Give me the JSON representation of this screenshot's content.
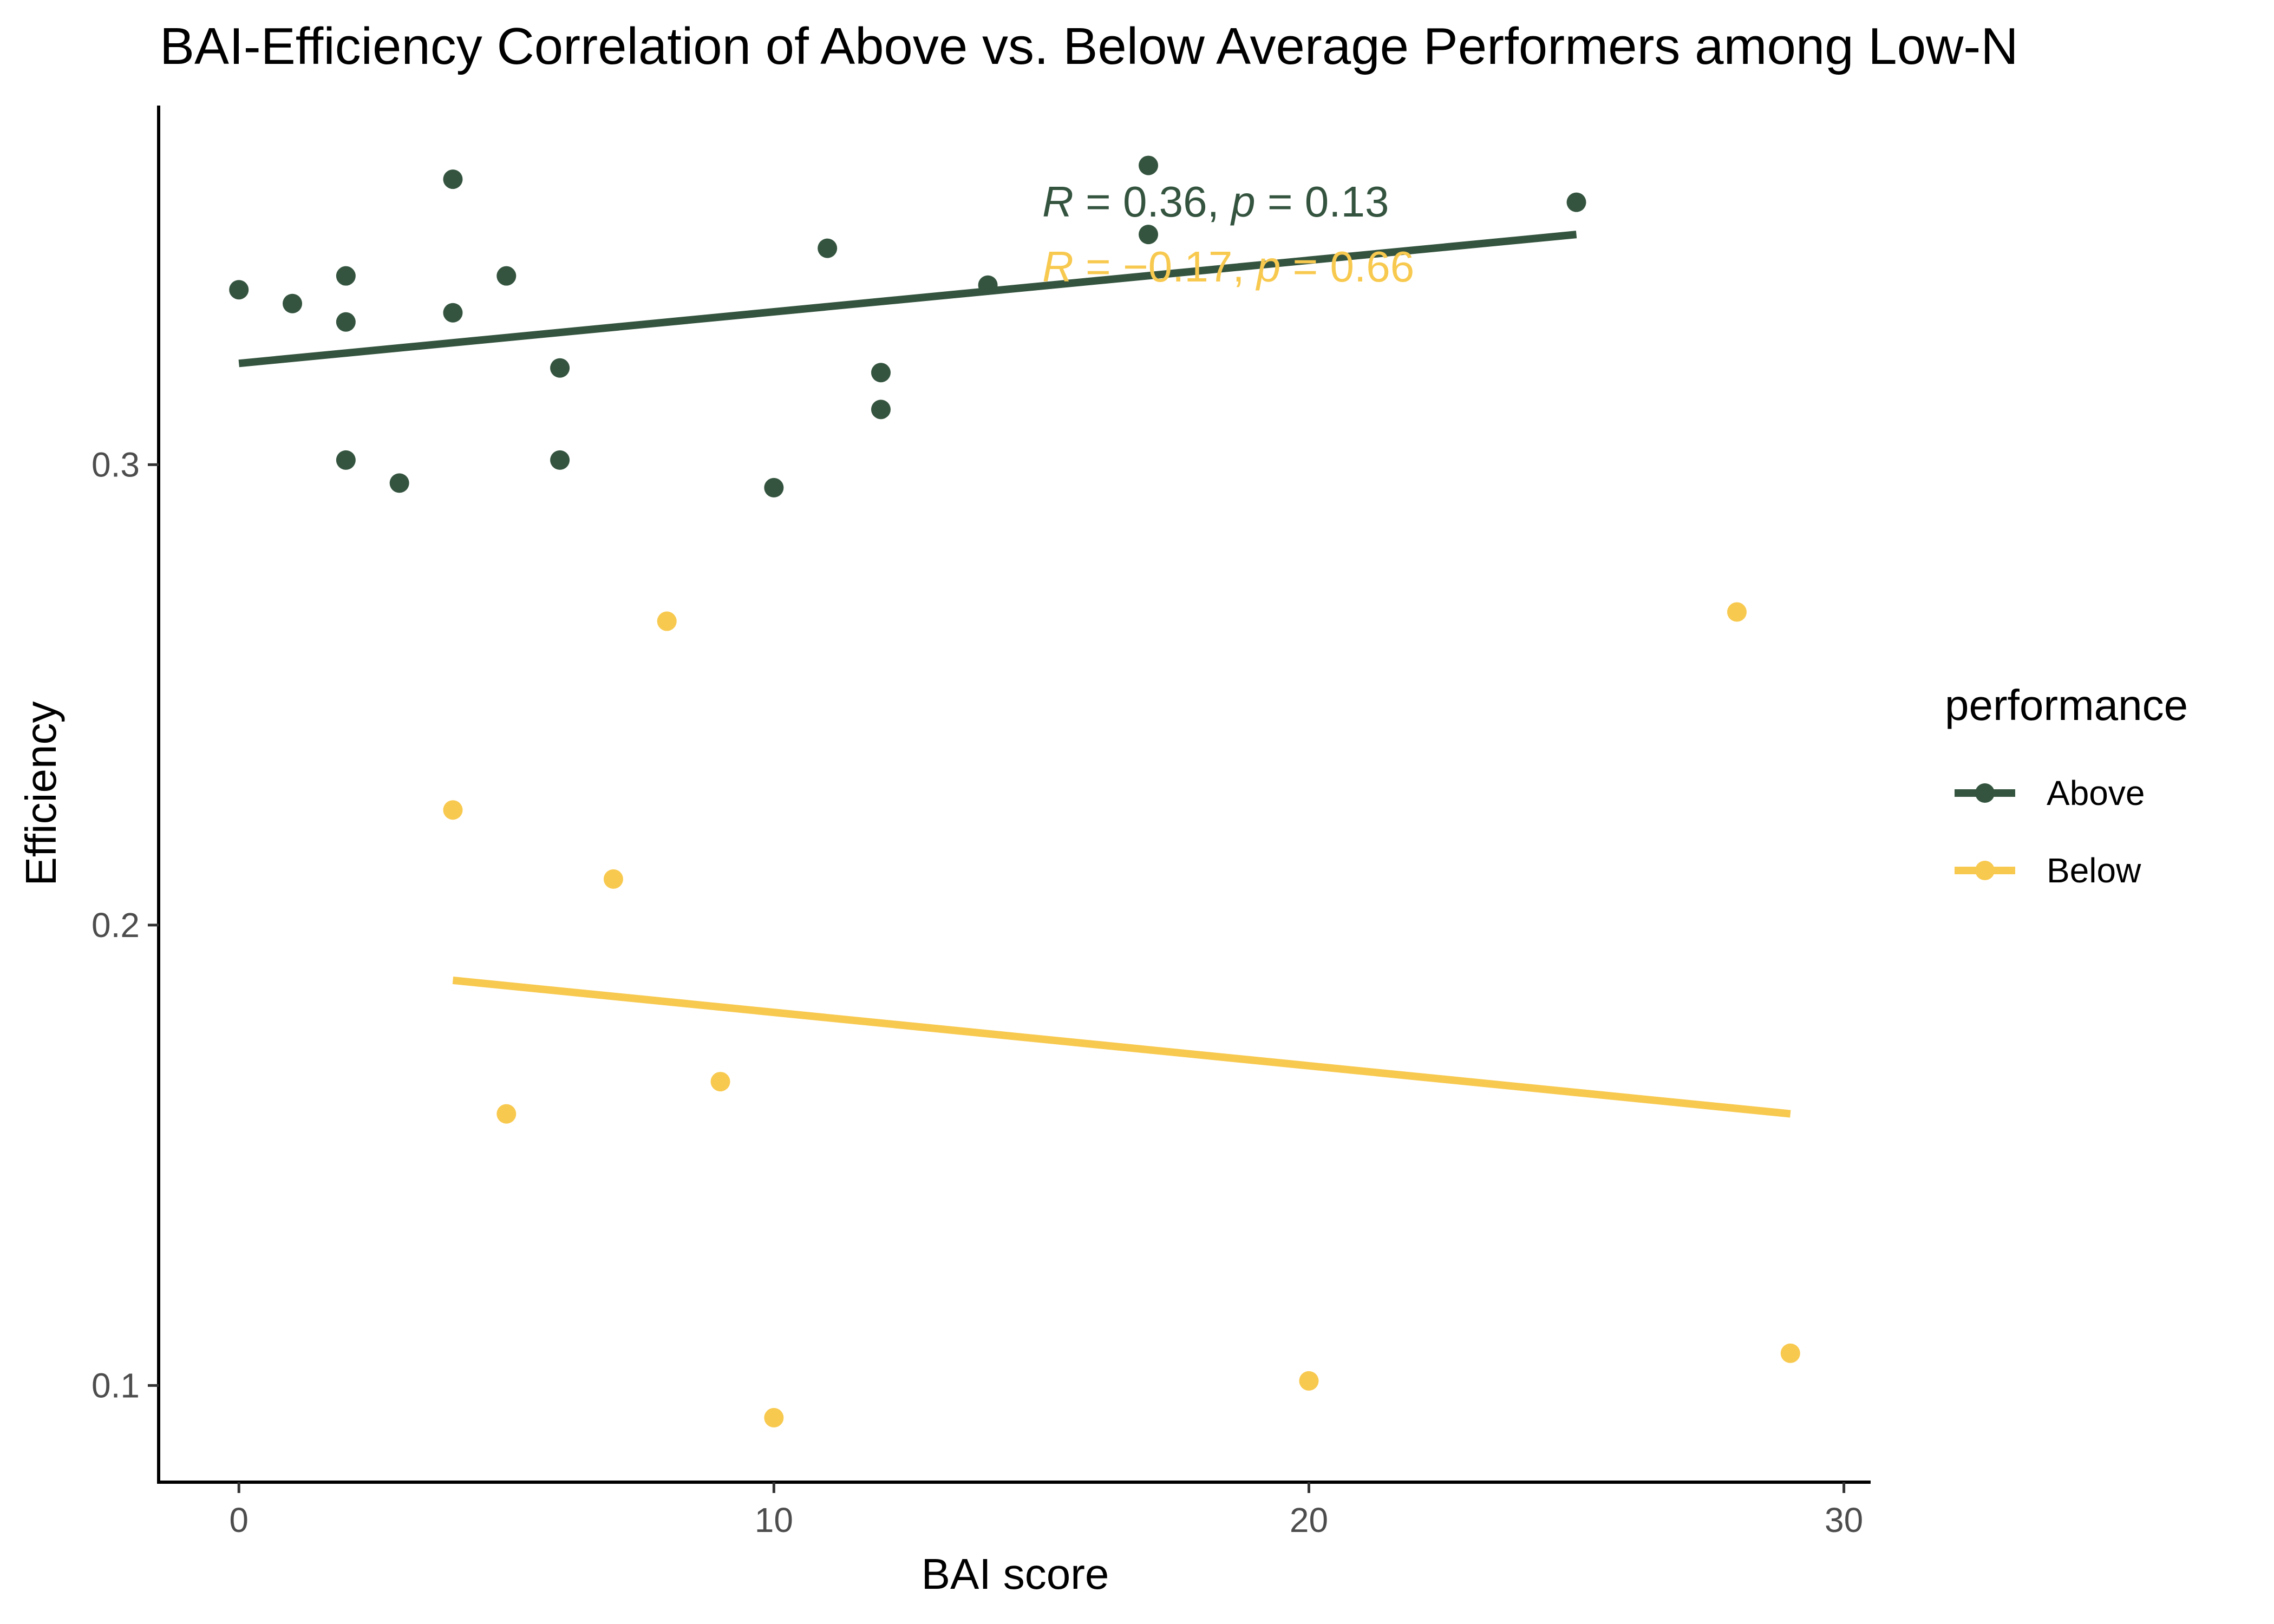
{
  "chart_data": {
    "type": "scatter",
    "title": "BAI-Efficiency Correlation of Above vs. Below Average Performers among Low-N",
    "xlabel": "BAI score",
    "ylabel": "Efficiency",
    "xlim": [
      -1.5,
      30.5
    ],
    "ylim": [
      0.079,
      0.378
    ],
    "x_ticks": [
      0,
      10,
      20,
      30
    ],
    "x_tick_labels": [
      "0",
      "10",
      "20",
      "30"
    ],
    "y_ticks": [
      0.1,
      0.2,
      0.3
    ],
    "y_tick_labels": [
      "0.1",
      "0.2",
      "0.3"
    ],
    "grid": false,
    "legend": {
      "title": "performance",
      "placement": "right",
      "entries": [
        "Above",
        "Below"
      ]
    },
    "series": [
      {
        "name": "Above",
        "color": "#34543f",
        "points": [
          {
            "x": 0,
            "y": 0.338
          },
          {
            "x": 1,
            "y": 0.335
          },
          {
            "x": 2,
            "y": 0.341
          },
          {
            "x": 2,
            "y": 0.331
          },
          {
            "x": 2,
            "y": 0.301
          },
          {
            "x": 3,
            "y": 0.296
          },
          {
            "x": 4,
            "y": 0.362
          },
          {
            "x": 4,
            "y": 0.333
          },
          {
            "x": 5,
            "y": 0.341
          },
          {
            "x": 6,
            "y": 0.321
          },
          {
            "x": 6,
            "y": 0.301
          },
          {
            "x": 10,
            "y": 0.295
          },
          {
            "x": 11,
            "y": 0.347
          },
          {
            "x": 12,
            "y": 0.32
          },
          {
            "x": 12,
            "y": 0.312
          },
          {
            "x": 14,
            "y": 0.339
          },
          {
            "x": 17,
            "y": 0.365
          },
          {
            "x": 17,
            "y": 0.35
          },
          {
            "x": 25,
            "y": 0.357
          }
        ],
        "fit": {
          "x": [
            0,
            25
          ],
          "y": [
            0.322,
            0.35
          ]
        },
        "annotation": {
          "r_label": "R",
          "r_value": " = 0.36, ",
          "p_label": "p",
          "p_value": " = 0.13"
        }
      },
      {
        "name": "Below",
        "color": "#f8c94f",
        "points": [
          {
            "x": 4,
            "y": 0.225
          },
          {
            "x": 5,
            "y": 0.159
          },
          {
            "x": 7,
            "y": 0.21
          },
          {
            "x": 8,
            "y": 0.266
          },
          {
            "x": 9,
            "y": 0.166
          },
          {
            "x": 10,
            "y": 0.093
          },
          {
            "x": 20,
            "y": 0.101
          },
          {
            "x": 28,
            "y": 0.268
          },
          {
            "x": 29,
            "y": 0.107
          }
        ],
        "fit": {
          "x": [
            4,
            29
          ],
          "y": [
            0.188,
            0.159
          ]
        },
        "annotation": {
          "r_label": "R",
          "r_value": " = −0.17, ",
          "p_label": "p",
          "p_value": " = 0.66"
        }
      }
    ]
  }
}
